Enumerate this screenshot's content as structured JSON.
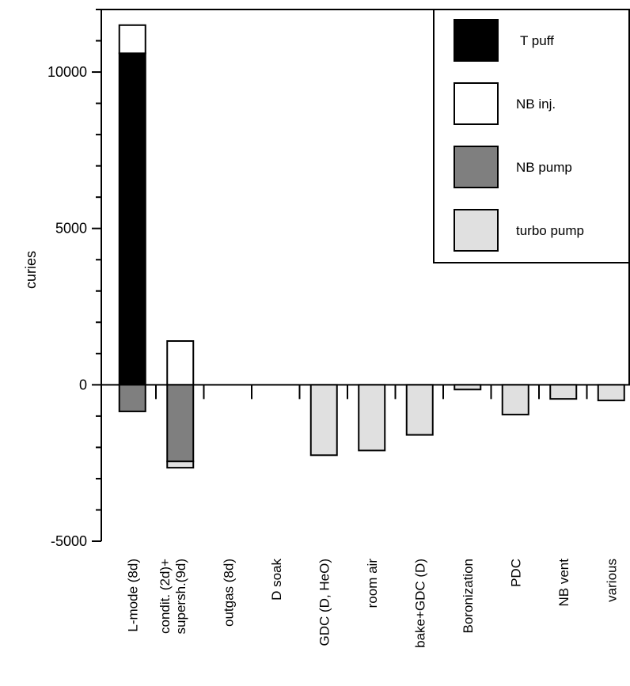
{
  "chart_data": {
    "type": "bar",
    "ylabel": "curies",
    "ylim": [
      -5000,
      12000
    ],
    "yticks": [
      10000,
      5000,
      0,
      -5000
    ],
    "grid": false,
    "legend_position": "top-right",
    "categories": [
      [
        "L-mode (8d)"
      ],
      [
        "condit. (2d)+",
        "supersh.(9d)"
      ],
      [
        "outgas (8d)"
      ],
      [
        "D soak"
      ],
      [
        "GDC (D, HeO)"
      ],
      [
        "room air"
      ],
      [
        "bake+GDC (D)"
      ],
      [
        "Boronization"
      ],
      [
        "PDC"
      ],
      [
        "NB vent"
      ],
      [
        "various"
      ]
    ],
    "series": [
      {
        "name": "T puff",
        "color": "#000000",
        "values": [
          10600,
          0,
          0,
          0,
          0,
          0,
          0,
          0,
          0,
          0,
          0
        ]
      },
      {
        "name": "NB inj.",
        "color": "#ffffff",
        "values": [
          900,
          1400,
          0,
          0,
          0,
          0,
          0,
          0,
          0,
          0,
          0
        ]
      },
      {
        "name": "NB pump",
        "color": "#7f7f7f",
        "values": [
          -850,
          -2450,
          0,
          0,
          0,
          0,
          0,
          0,
          0,
          0,
          0
        ]
      },
      {
        "name": "turbo pump",
        "color": "#e0e0e0",
        "values": [
          0,
          -200,
          0,
          0,
          -2250,
          -2100,
          -1600,
          -150,
          -950,
          -450,
          -500
        ]
      }
    ]
  }
}
